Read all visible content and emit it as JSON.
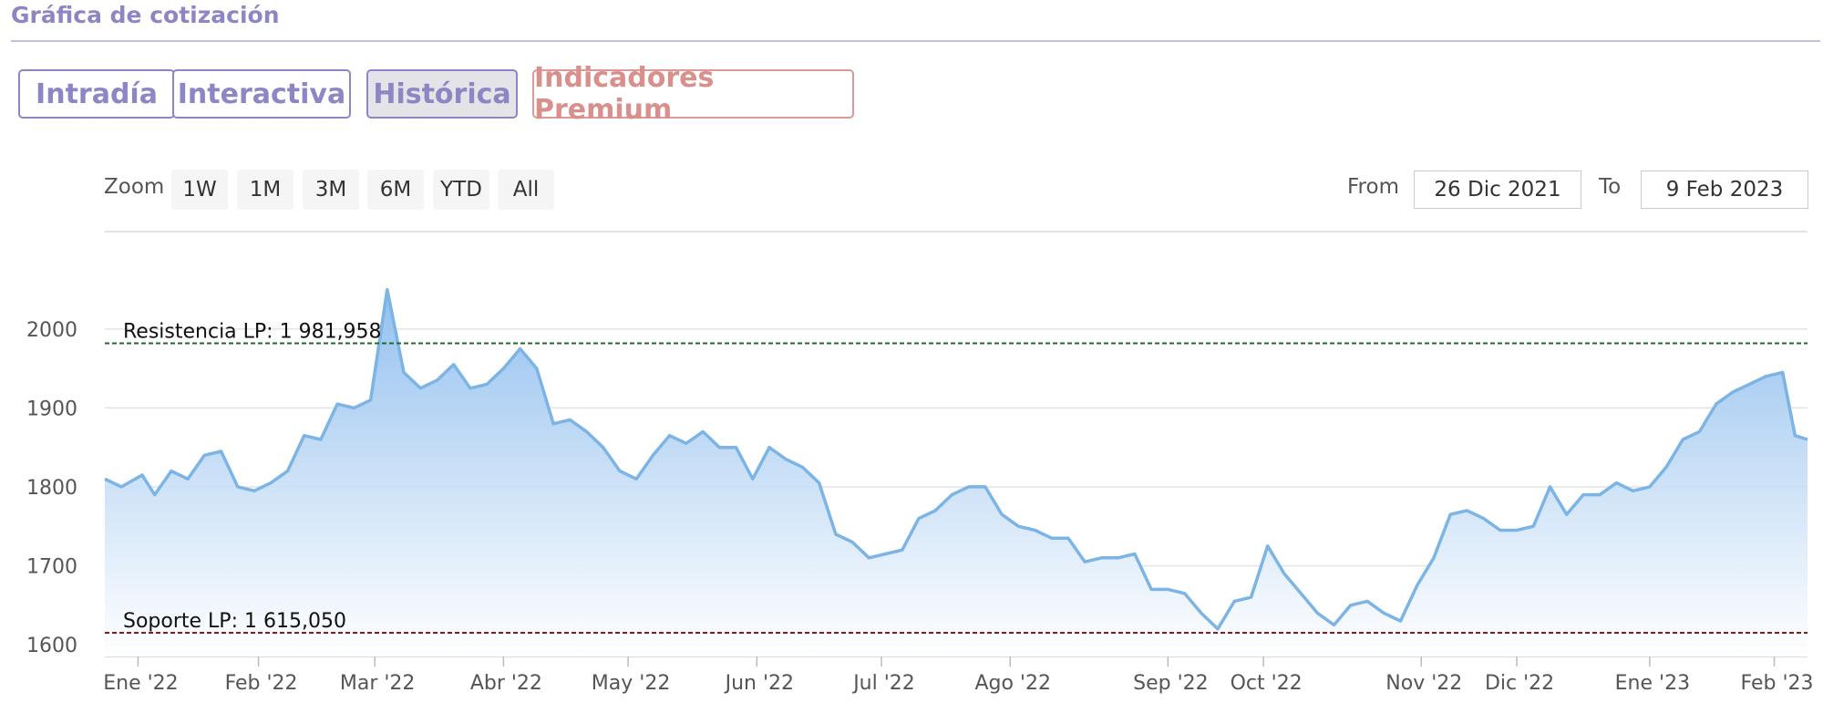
{
  "header": {
    "title": "Gráfica de cotización"
  },
  "tabs": [
    {
      "label": "Intradía",
      "active": false
    },
    {
      "label": "Interactiva",
      "active": false
    },
    {
      "label": "Histórica",
      "active": true
    },
    {
      "label": "Indicadores Premium",
      "active": false
    }
  ],
  "zoom": {
    "label": "Zoom",
    "buttons": [
      "1W",
      "1M",
      "3M",
      "6M",
      "YTD",
      "All"
    ]
  },
  "range": {
    "from_label": "From",
    "from_value": "26 Dic 2021",
    "to_label": "To",
    "to_value": "9 Feb 2023"
  },
  "colors": {
    "accent": "#8d86c4",
    "premium": "#d9908d",
    "line": "#7cb4e6",
    "resistance": "#1f6b2a",
    "support": "#8b1a1a"
  },
  "chart_data": {
    "type": "area",
    "title": "",
    "xlabel": "",
    "ylabel": "",
    "ylim": [
      1585,
      2105
    ],
    "yticks": [
      1600,
      1700,
      1800,
      1900,
      2000
    ],
    "xlim": [
      "2021-12-26",
      "2023-02-09"
    ],
    "xticks": [
      {
        "label": "Ene '22",
        "date": "2022-01-03"
      },
      {
        "label": "Feb '22",
        "date": "2022-02-01"
      },
      {
        "label": "Mar '22",
        "date": "2022-03-01"
      },
      {
        "label": "Abr '22",
        "date": "2022-04-01"
      },
      {
        "label": "May '22",
        "date": "2022-05-01"
      },
      {
        "label": "Jun '22",
        "date": "2022-06-01"
      },
      {
        "label": "Jul '22",
        "date": "2022-07-01"
      },
      {
        "label": "Ago '22",
        "date": "2022-08-01"
      },
      {
        "label": "Sep '22",
        "date": "2022-09-08"
      },
      {
        "label": "Oct '22",
        "date": "2022-10-01"
      },
      {
        "label": "Nov '22",
        "date": "2022-11-08"
      },
      {
        "label": "Dic '22",
        "date": "2022-12-01"
      },
      {
        "label": "Ene '23",
        "date": "2023-01-02"
      },
      {
        "label": "Feb '23",
        "date": "2023-02-01"
      }
    ],
    "grid": true,
    "reference_lines": [
      {
        "label": "Resistencia LP: 1 981,958",
        "value": 1981.958,
        "color": "#1f6b2a"
      },
      {
        "label": "Soporte LP: 1 615,050",
        "value": 1615.05,
        "color": "#8b1a1a"
      }
    ],
    "series": [
      {
        "x": [
          "2021-12-26",
          "2021-12-30",
          "2022-01-04",
          "2022-01-07",
          "2022-01-11",
          "2022-01-15",
          "2022-01-19",
          "2022-01-23",
          "2022-01-27",
          "2022-01-31",
          "2022-02-04",
          "2022-02-08",
          "2022-02-12",
          "2022-02-16",
          "2022-02-20",
          "2022-02-24",
          "2022-02-28",
          "2022-03-04",
          "2022-03-08",
          "2022-03-12",
          "2022-03-16",
          "2022-03-20",
          "2022-03-24",
          "2022-03-28",
          "2022-04-01",
          "2022-04-05",
          "2022-04-09",
          "2022-04-13",
          "2022-04-17",
          "2022-04-21",
          "2022-04-25",
          "2022-04-29",
          "2022-05-03",
          "2022-05-07",
          "2022-05-11",
          "2022-05-15",
          "2022-05-19",
          "2022-05-23",
          "2022-05-27",
          "2022-05-31",
          "2022-06-04",
          "2022-06-08",
          "2022-06-12",
          "2022-06-16",
          "2022-06-20",
          "2022-06-24",
          "2022-06-28",
          "2022-07-02",
          "2022-07-06",
          "2022-07-10",
          "2022-07-14",
          "2022-07-18",
          "2022-07-22",
          "2022-07-26",
          "2022-07-30",
          "2022-08-03",
          "2022-08-07",
          "2022-08-11",
          "2022-08-15",
          "2022-08-19",
          "2022-08-23",
          "2022-08-27",
          "2022-08-31",
          "2022-09-04",
          "2022-09-08",
          "2022-09-12",
          "2022-09-16",
          "2022-09-20",
          "2022-09-24",
          "2022-09-28",
          "2022-10-02",
          "2022-10-06",
          "2022-10-10",
          "2022-10-14",
          "2022-10-18",
          "2022-10-22",
          "2022-10-26",
          "2022-10-30",
          "2022-11-03",
          "2022-11-07",
          "2022-11-11",
          "2022-11-15",
          "2022-11-19",
          "2022-11-23",
          "2022-11-27",
          "2022-12-01",
          "2022-12-05",
          "2022-12-09",
          "2022-12-13",
          "2022-12-17",
          "2022-12-21",
          "2022-12-25",
          "2022-12-29",
          "2023-01-02",
          "2023-01-06",
          "2023-01-10",
          "2023-01-14",
          "2023-01-18",
          "2023-01-22",
          "2023-01-26",
          "2023-01-30",
          "2023-02-03",
          "2023-02-06",
          "2023-02-09"
        ],
        "values": [
          1810,
          1800,
          1815,
          1790,
          1820,
          1810,
          1840,
          1845,
          1800,
          1795,
          1805,
          1820,
          1865,
          1860,
          1905,
          1900,
          1910,
          2050,
          1945,
          1925,
          1935,
          1955,
          1925,
          1930,
          1950,
          1975,
          1950,
          1880,
          1885,
          1870,
          1850,
          1820,
          1810,
          1840,
          1865,
          1855,
          1870,
          1850,
          1850,
          1810,
          1850,
          1835,
          1825,
          1805,
          1740,
          1730,
          1710,
          1715,
          1720,
          1760,
          1770,
          1790,
          1800,
          1800,
          1765,
          1750,
          1745,
          1735,
          1735,
          1705,
          1710,
          1710,
          1715,
          1670,
          1670,
          1665,
          1640,
          1620,
          1655,
          1660,
          1725,
          1690,
          1665,
          1640,
          1625,
          1650,
          1655,
          1640,
          1630,
          1675,
          1710,
          1765,
          1770,
          1760,
          1745,
          1745,
          1750,
          1800,
          1765,
          1790,
          1790,
          1805,
          1795,
          1800,
          1825,
          1860,
          1870,
          1905,
          1920,
          1930,
          1940,
          1945,
          1865,
          1860
        ]
      }
    ]
  }
}
